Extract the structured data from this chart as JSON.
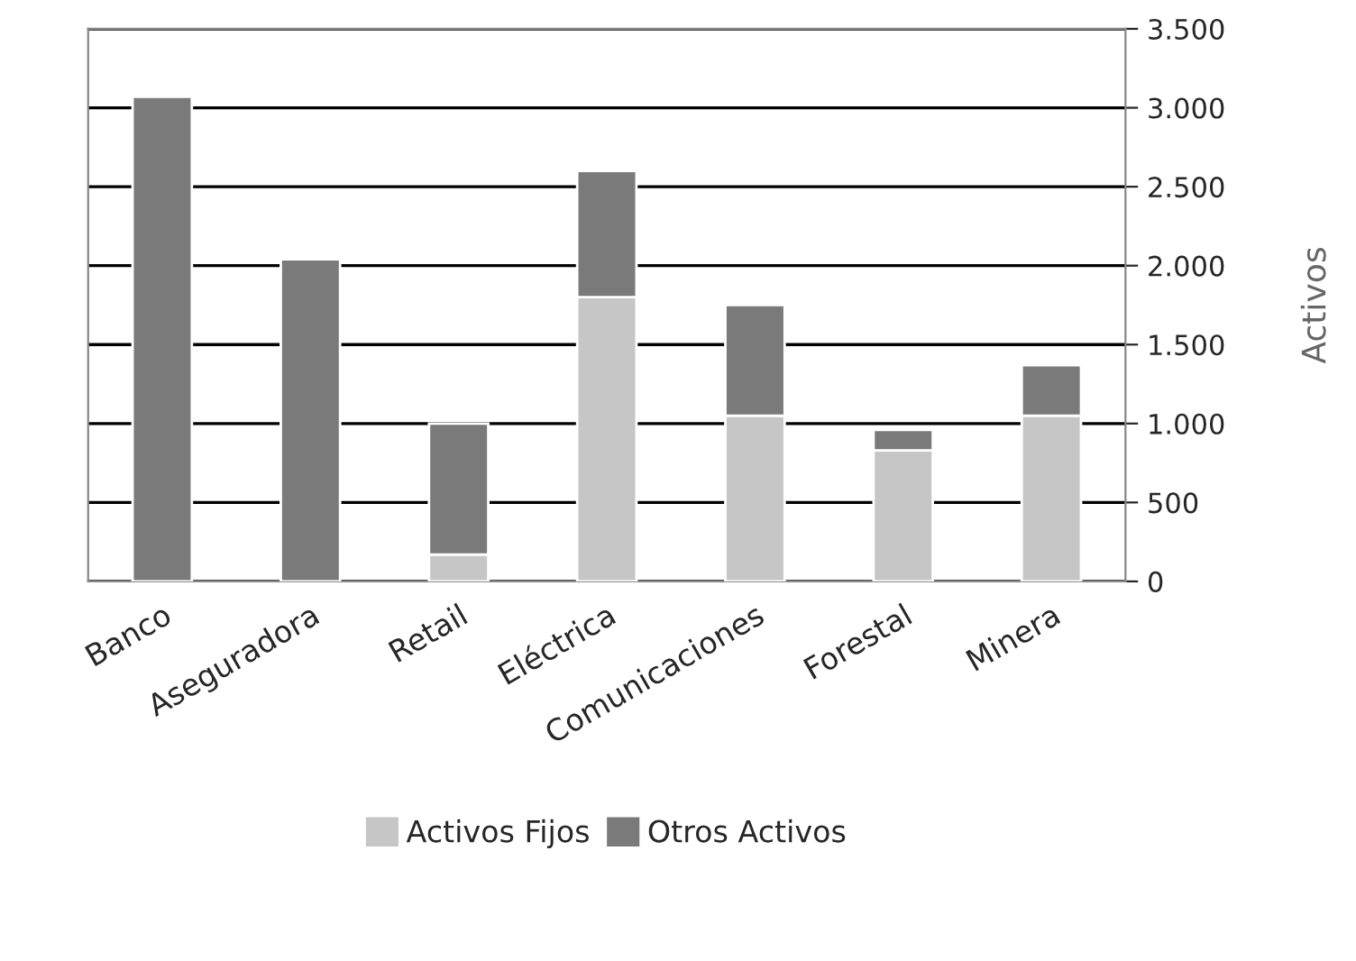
{
  "chart_data": {
    "type": "bar",
    "stacked": true,
    "ylabel": "Activos",
    "categories": [
      "Banco",
      "Aseguradora",
      "Retail",
      "Eléctrica",
      "Comunicaciones",
      "Forestal",
      "Minera"
    ],
    "series": [
      {
        "name": "Activos Fijos",
        "color": "#c6c6c6",
        "values": [
          0,
          0,
          170,
          1800,
          1050,
          830,
          1050
        ]
      },
      {
        "name": "Otros Activos",
        "color": "#7a7a7a",
        "values": [
          3070,
          2040,
          830,
          800,
          700,
          130,
          320
        ]
      }
    ],
    "ylim": [
      0,
      3500
    ],
    "yticks": [
      {
        "value": 0,
        "label": "0"
      },
      {
        "value": 500,
        "label": "500"
      },
      {
        "value": 1000,
        "label": "1.000"
      },
      {
        "value": 1500,
        "label": "1.500"
      },
      {
        "value": 2000,
        "label": "2.000"
      },
      {
        "value": 2500,
        "label": "2.500"
      },
      {
        "value": 3000,
        "label": "3.000"
      },
      {
        "value": 3500,
        "label": "3.500"
      }
    ],
    "grid": "y",
    "legend": "bottom"
  }
}
